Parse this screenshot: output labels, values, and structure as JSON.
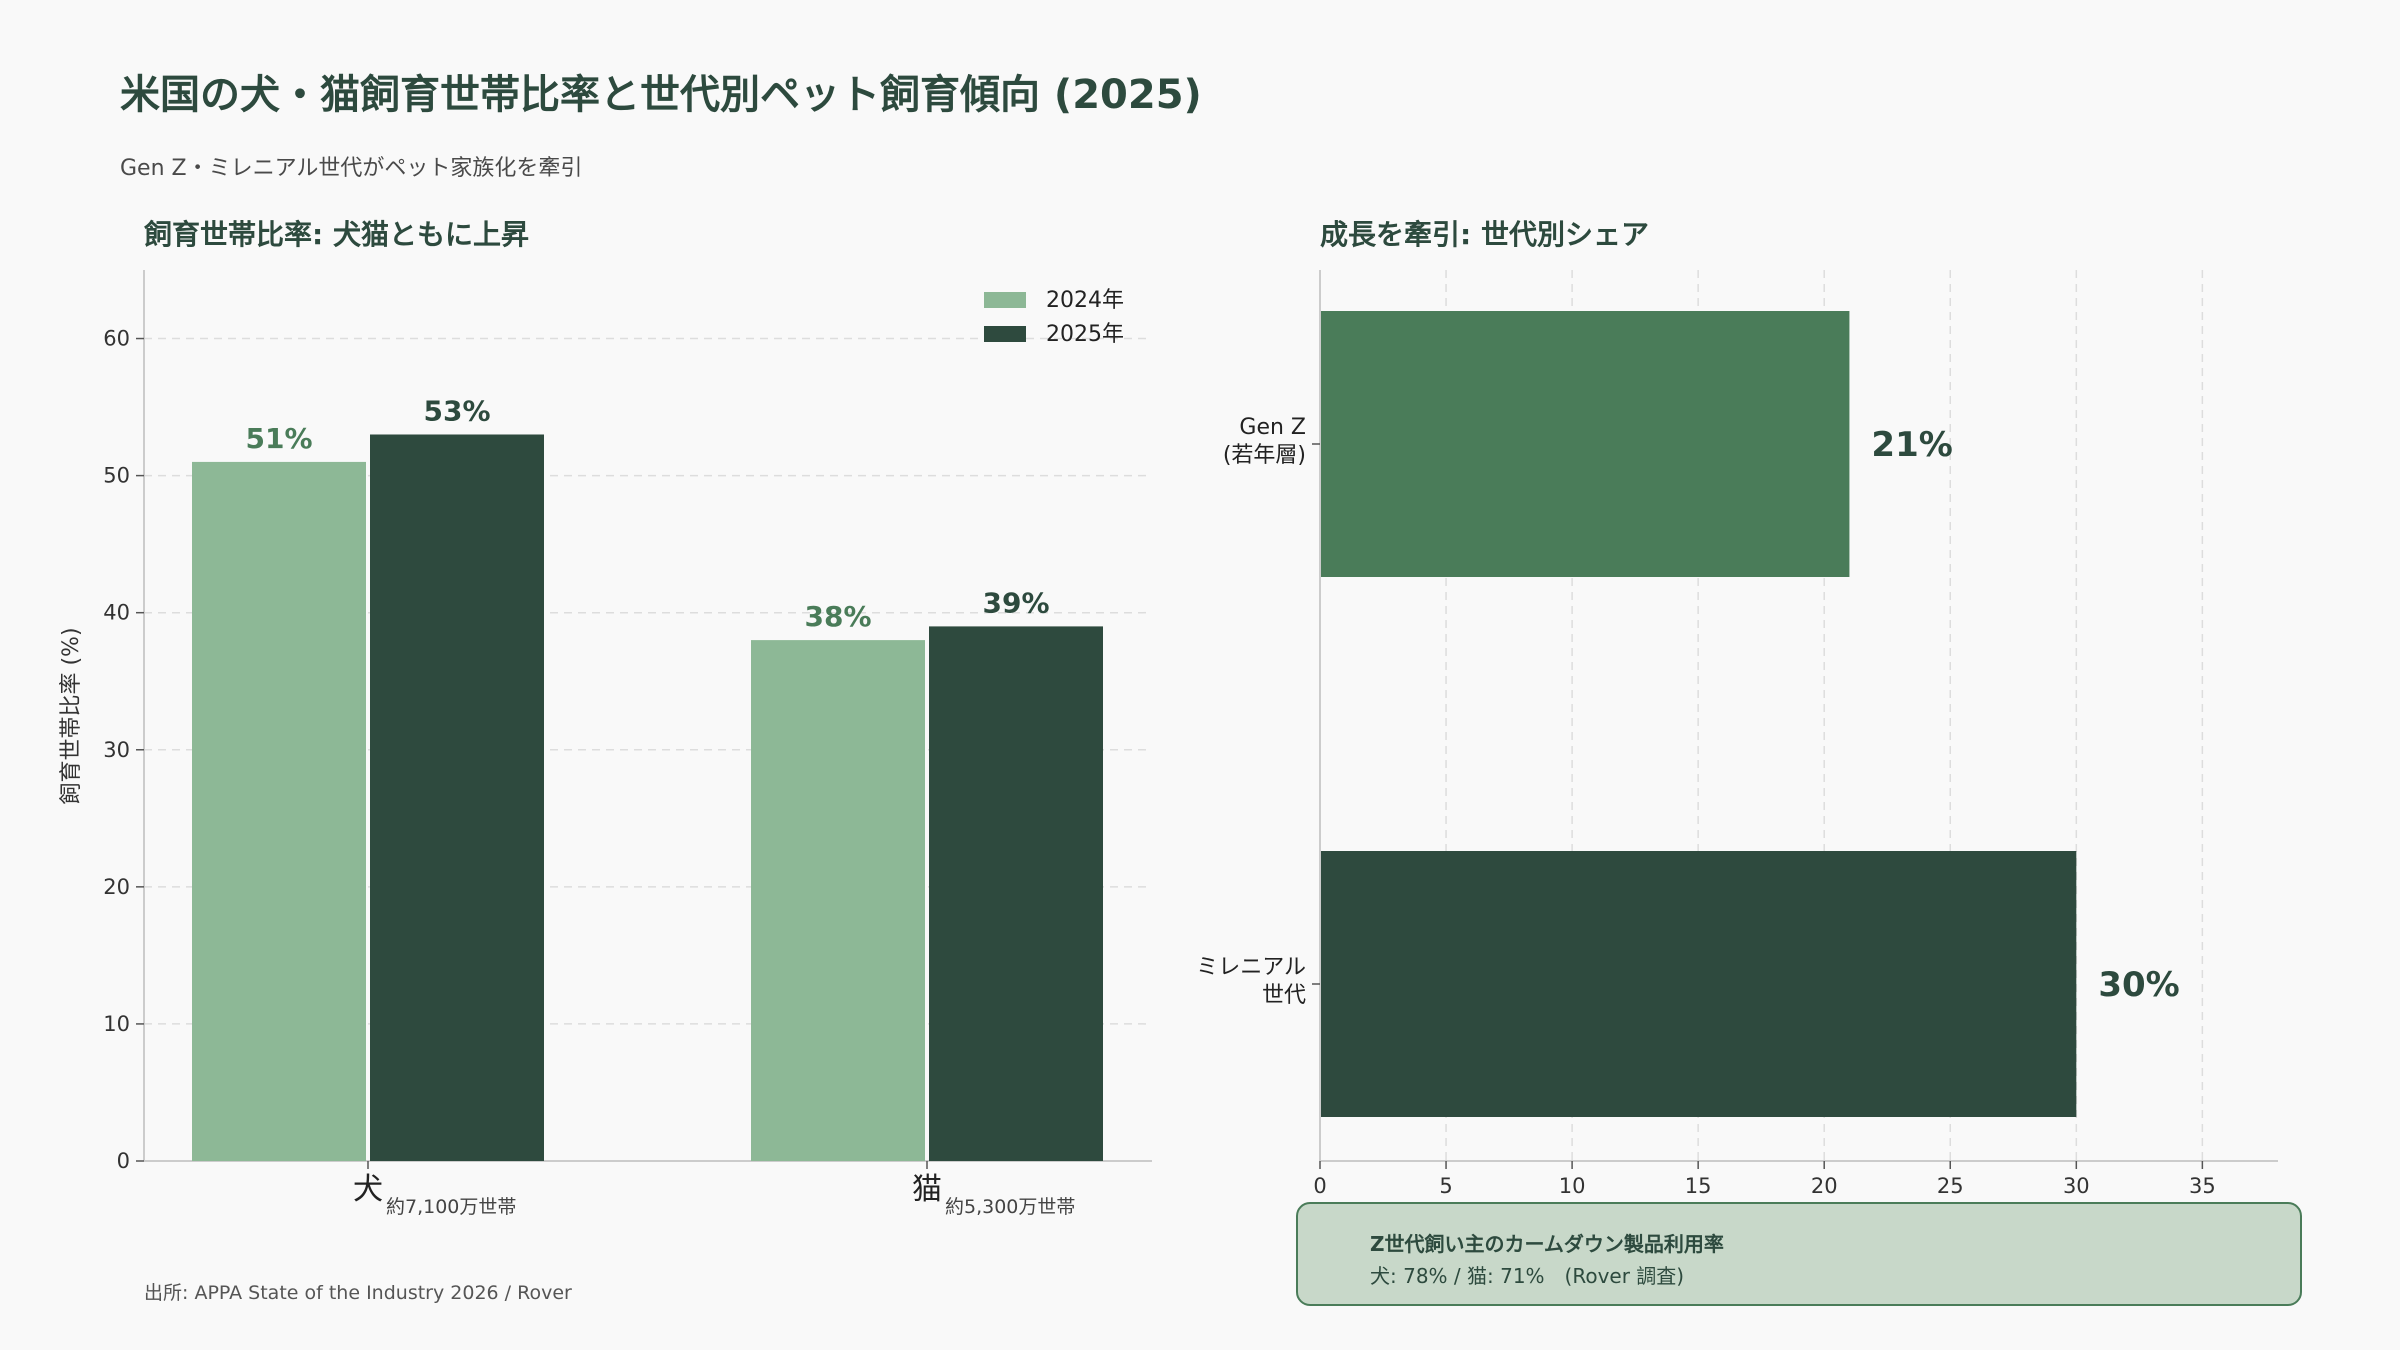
{
  "title": "米国の犬・猫飼育世帯比率と世代別ペット飼育傾向 (2025)",
  "subtitle": "Gen Z・ミレニアル世代がペット家族化を牽引",
  "source": "出所: APPA State of the Industry 2026 / Rover",
  "colors": {
    "series_2024": "#8db896",
    "series_2025": "#2e4a3e",
    "genz_bar": "#4a7c59",
    "millennial_bar": "#2e4a3e",
    "label_2024": "#4a7c59",
    "label_2025": "#2d4a3e"
  },
  "chart_data": [
    {
      "type": "bar",
      "title": "飼育世帯比率: 犬猫ともに上昇",
      "ylabel": "飼育世帯比率 (%)",
      "ylim": [
        0,
        65
      ],
      "yticks": [
        0,
        10,
        20,
        30,
        40,
        50,
        60
      ],
      "grid": true,
      "legend_position": "top-right",
      "categories": [
        {
          "label": "犬",
          "sublabel": "約7,100万世帯"
        },
        {
          "label": "猫",
          "sublabel": "約5,300万世帯"
        }
      ],
      "series": [
        {
          "name": "2024年",
          "values": [
            51,
            38
          ],
          "value_labels": [
            "51%",
            "38%"
          ]
        },
        {
          "name": "2025年",
          "values": [
            53,
            39
          ],
          "value_labels": [
            "53%",
            "39%"
          ]
        }
      ]
    },
    {
      "type": "bar",
      "orientation": "horizontal",
      "title": "成長を牽引: 世代別シェア",
      "xlim": [
        0,
        38
      ],
      "xticks": [
        0,
        5,
        10,
        15,
        20,
        25,
        30,
        35
      ],
      "grid": true,
      "categories": [
        {
          "label_lines": [
            "Gen Z",
            "(若年層)"
          ]
        },
        {
          "label_lines": [
            "ミレニアル",
            "世代"
          ]
        }
      ],
      "values": [
        21,
        30
      ],
      "value_labels": [
        "21%",
        "30%"
      ]
    }
  ],
  "infobox": {
    "title": "Z世代飼い主のカームダウン製品利用率",
    "body": "犬: 78% / 猫: 71%　(Rover 調査)"
  }
}
